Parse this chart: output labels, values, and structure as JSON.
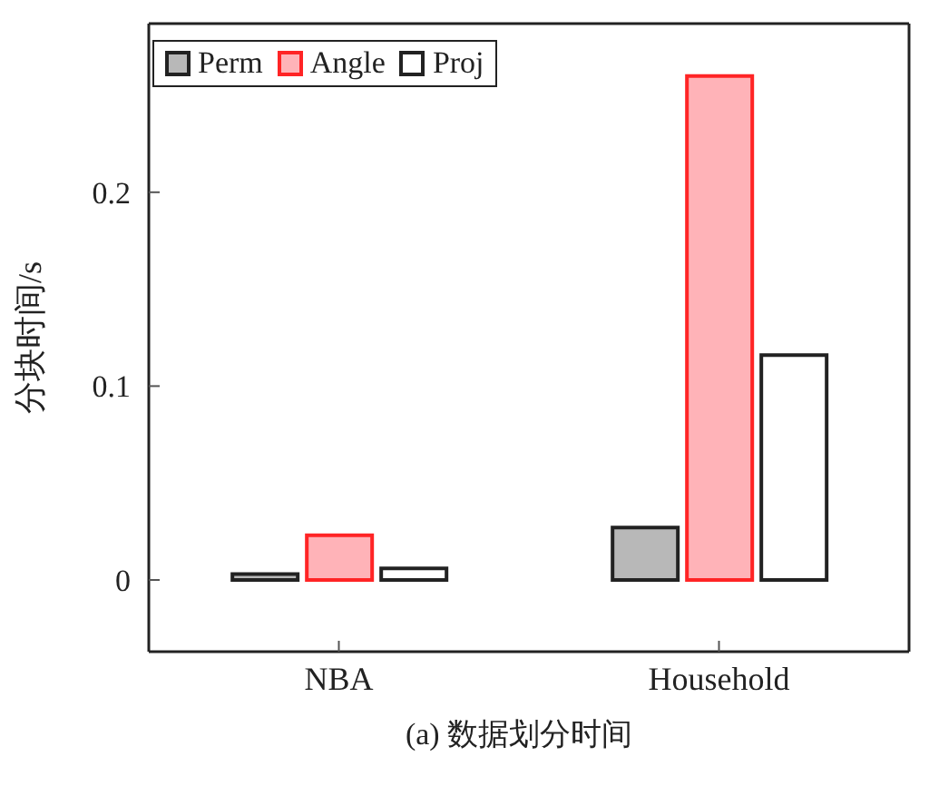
{
  "chart_data": {
    "type": "bar",
    "ylabel": "分块时间/s",
    "categories": [
      "NBA",
      "Household"
    ],
    "series": [
      {
        "name": "Perm",
        "color": "#b8b8b8",
        "values": [
          0.003,
          0.027
        ]
      },
      {
        "name": "Angle",
        "color": "#ffb3b8",
        "values": [
          0.023,
          0.26
        ]
      },
      {
        "name": "Proj",
        "color": "#ffffff",
        "values": [
          0.006,
          0.116
        ]
      }
    ],
    "ylim": [
      -0.037,
      0.287
    ],
    "yticks": [
      0,
      {
        "value": 0.1,
        "label": "0.1"
      },
      {
        "value": 0.2,
        "label": "0.2"
      }
    ],
    "grid": false,
    "legend": "top left",
    "annotations": [
      "(a) 数据划分时间"
    ]
  }
}
